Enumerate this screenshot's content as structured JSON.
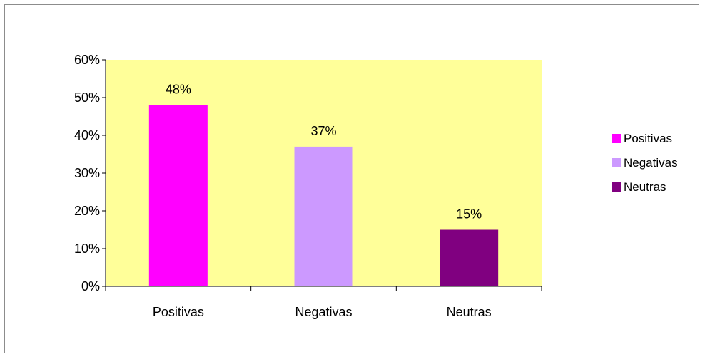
{
  "chart_data": {
    "type": "bar",
    "categories": [
      "Positivas",
      "Negativas",
      "Neutras"
    ],
    "values": [
      48,
      37,
      15
    ],
    "data_labels": [
      "48%",
      "37%",
      "15%"
    ],
    "colors": [
      "#ff00ff",
      "#cc99ff",
      "#800080"
    ],
    "plot_background": "#ffff99",
    "ylim": [
      0,
      60
    ],
    "yticks": [
      0,
      10,
      20,
      30,
      40,
      50,
      60
    ],
    "ytick_labels": [
      "0%",
      "10%",
      "20%",
      "30%",
      "40%",
      "50%",
      "60%"
    ],
    "title": "",
    "xlabel": "",
    "ylabel": "",
    "grid": false,
    "legend": {
      "position": "right",
      "entries": [
        "Positivas",
        "Negativas",
        "Neutras"
      ]
    }
  }
}
